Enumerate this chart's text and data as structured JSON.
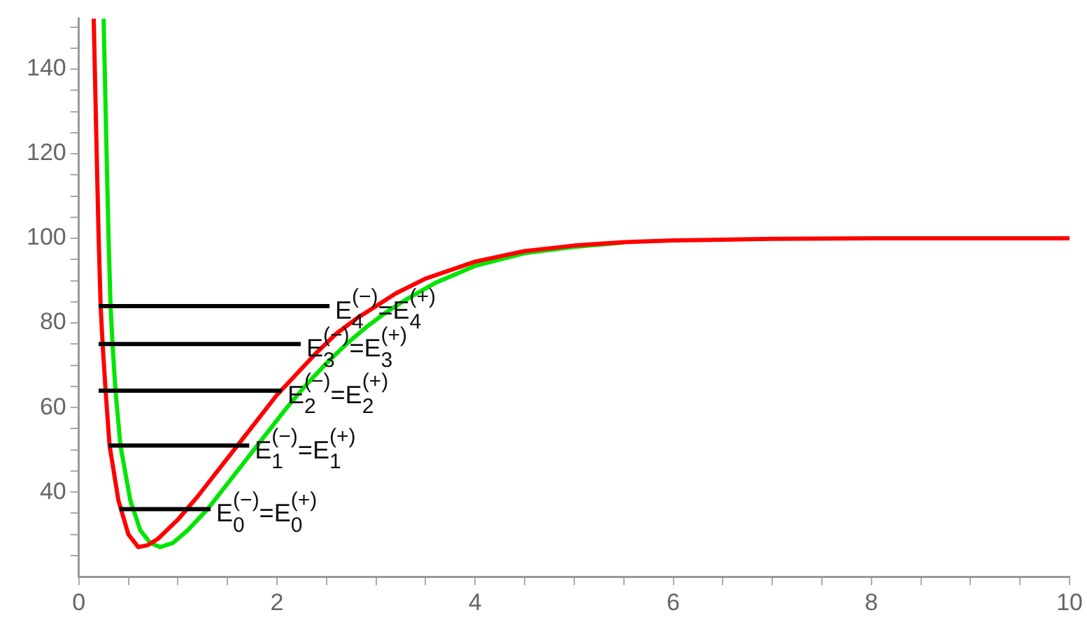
{
  "chart_data": {
    "type": "line",
    "xlim": [
      0,
      10
    ],
    "ylim": [
      20,
      152
    ],
    "xticks": [
      0,
      {
        "value": 0.5,
        "label": null
      },
      {
        "value": 1,
        "label": null
      },
      {
        "value": 1.5,
        "label": null
      },
      2,
      {
        "value": 2.5,
        "label": null
      },
      {
        "value": 3,
        "label": null
      },
      {
        "value": 3.5,
        "label": null
      },
      4,
      {
        "value": 4.5,
        "label": null
      },
      {
        "value": 5,
        "label": null
      },
      {
        "value": 5.5,
        "label": null
      },
      6,
      {
        "value": 6.5,
        "label": null
      },
      {
        "value": 7,
        "label": null
      },
      {
        "value": 7.5,
        "label": null
      },
      8,
      {
        "value": 8.5,
        "label": null
      },
      {
        "value": 9,
        "label": null
      },
      {
        "value": 9.5,
        "label": null
      },
      10
    ],
    "yticks": [
      {
        "value": 25,
        "label": null
      },
      {
        "value": 30,
        "label": null
      },
      {
        "value": 35,
        "label": null
      },
      40,
      {
        "value": 45,
        "label": null
      },
      {
        "value": 50,
        "label": null
      },
      {
        "value": 55,
        "label": null
      },
      60,
      {
        "value": 65,
        "label": null
      },
      {
        "value": 70,
        "label": null
      },
      {
        "value": 75,
        "label": null
      },
      80,
      {
        "value": 85,
        "label": null
      },
      {
        "value": 90,
        "label": null
      },
      {
        "value": 95,
        "label": null
      },
      100,
      {
        "value": 105,
        "label": null
      },
      {
        "value": 110,
        "label": null
      },
      {
        "value": 115,
        "label": null
      },
      120,
      {
        "value": 125,
        "label": null
      },
      {
        "value": 130,
        "label": null
      },
      {
        "value": 135,
        "label": null
      },
      140,
      {
        "value": 145,
        "label": null
      },
      {
        "value": 150,
        "label": null
      }
    ],
    "series": [
      {
        "color": "#00e600",
        "x": [
          0.25,
          0.28,
          0.3,
          0.32,
          0.34,
          0.37,
          0.42,
          0.52,
          0.62,
          0.72,
          0.82,
          0.95,
          1.1,
          1.3,
          1.5,
          1.7,
          1.9,
          2.1,
          2.3,
          2.5,
          2.7,
          2.9,
          3.1,
          3.3,
          3.6,
          4,
          4.5,
          5,
          5.5
        ],
        "values": [
          152,
          120,
          100,
          84,
          75,
          64,
          51,
          38,
          31,
          28,
          27,
          28,
          31,
          36,
          42,
          48,
          54,
          60,
          65.5,
          70.5,
          75,
          79,
          82.5,
          85.5,
          89.5,
          93.5,
          96.5,
          98,
          99
        ]
      },
      {
        "color": "#ff0000",
        "x": [
          0.15,
          0.18,
          0.2,
          0.22,
          0.24,
          0.27,
          0.31,
          0.4,
          0.5,
          0.6,
          0.7,
          0.8,
          1,
          1.2,
          1.4,
          1.6,
          1.8,
          2,
          2.2,
          2.4,
          2.6,
          2.8,
          3,
          3.2,
          3.5,
          4,
          4.5,
          5,
          5.5,
          6,
          7,
          8,
          10
        ],
        "values": [
          152,
          120,
          100,
          84,
          75,
          64,
          51,
          38,
          30,
          27,
          27.5,
          29,
          33.5,
          39,
          45,
          51,
          57,
          63,
          68,
          73,
          77.5,
          81,
          84,
          87,
          90.5,
          94.5,
          97,
          98.3,
          99.1,
          99.5,
          99.9,
          100,
          100
        ]
      },
      {
        "name": "E$_{4}$$^{(−)}$=E$_{4}$$^{(+)}$",
        "color": "#000000",
        "x": [
          0.2,
          2.53
        ],
        "values": [
          84,
          84
        ]
      },
      {
        "name": "E$_{3}$$^{(−)}$=E$_{3}$$^{(+)}$",
        "color": "#000000",
        "x": [
          0.2,
          2.24
        ],
        "values": [
          75,
          75
        ]
      },
      {
        "name": "E$_{2}$$^{(−)}$=E$_{2}$$^{(+)}$",
        "color": "#000000",
        "x": [
          0.2,
          2.05
        ],
        "values": [
          64,
          64
        ]
      },
      {
        "name": "E$_{1}$$^{(−)}$=E$_{1}$$^{(+)}$",
        "color": "#000000",
        "x": [
          0.3,
          1.72
        ],
        "values": [
          51,
          51
        ]
      },
      {
        "name": "E$_{0}$$^{(−)}$=E$_{0}$$^{(+)}$",
        "color": "#000000",
        "x": [
          0.41,
          1.33
        ],
        "values": [
          36,
          36
        ]
      }
    ]
  }
}
